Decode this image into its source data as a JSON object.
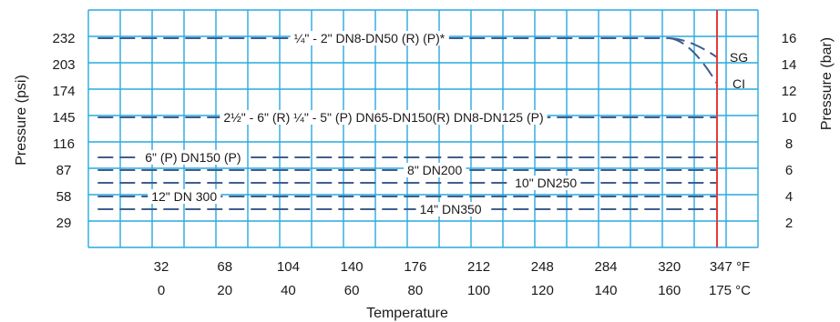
{
  "chart_data": {
    "type": "line",
    "title": "",
    "xlabel": "Temperature",
    "ylabel_left": "Pressure (psi)",
    "ylabel_right": "Pressure (bar)",
    "grid": true,
    "x_ticks_f": [
      "32",
      "68",
      "104",
      "140",
      "176",
      "212",
      "248",
      "284",
      "320",
      "347 °F"
    ],
    "x_ticks_c": [
      "0",
      "20",
      "40",
      "60",
      "80",
      "100",
      "120",
      "140",
      "160",
      "175 °C"
    ],
    "y_ticks_left": [
      "232",
      "203",
      "174",
      "145",
      "116",
      "87",
      "58",
      "29"
    ],
    "y_ticks_right": [
      "16",
      "14",
      "12",
      "10",
      "8",
      "6",
      "4",
      "2"
    ],
    "max_temperature_f": 347,
    "series": [
      {
        "name": "¼\" - 2\"   DN8-DN50 (R) (P)*",
        "x": [
          -4,
          320
        ],
        "y": [
          232,
          232
        ],
        "label_at": 150
      },
      {
        "name": "SG",
        "x": [
          320,
          347
        ],
        "y": [
          232,
          211
        ]
      },
      {
        "name": "CI",
        "x": [
          320,
          347
        ],
        "y": [
          232,
          182
        ]
      },
      {
        "name": "2½\" - 6\" (R)  ¼\" - 5\" (P)   DN65-DN150(R)  DN8-DN125 (P)",
        "x": [
          -4,
          347
        ],
        "y": [
          145,
          145
        ],
        "label_at": 158
      },
      {
        "name": "6\" (P)  DN150 (P)",
        "x": [
          -4,
          347
        ],
        "y": [
          101,
          101
        ],
        "label_at": 50
      },
      {
        "name": "8\"  DN200",
        "x": [
          -4,
          347
        ],
        "y": [
          87,
          87
        ],
        "label_at": 187
      },
      {
        "name": "10\" DN250",
        "x": [
          -4,
          347
        ],
        "y": [
          73,
          73
        ],
        "label_at": 250
      },
      {
        "name": "12\"  DN 300",
        "x": [
          -4,
          347
        ],
        "y": [
          58,
          58
        ],
        "label_at": 45
      },
      {
        "name": "14\"  DN350",
        "x": [
          -4,
          347
        ],
        "y": [
          44,
          44
        ],
        "label_at": 196
      }
    ]
  }
}
